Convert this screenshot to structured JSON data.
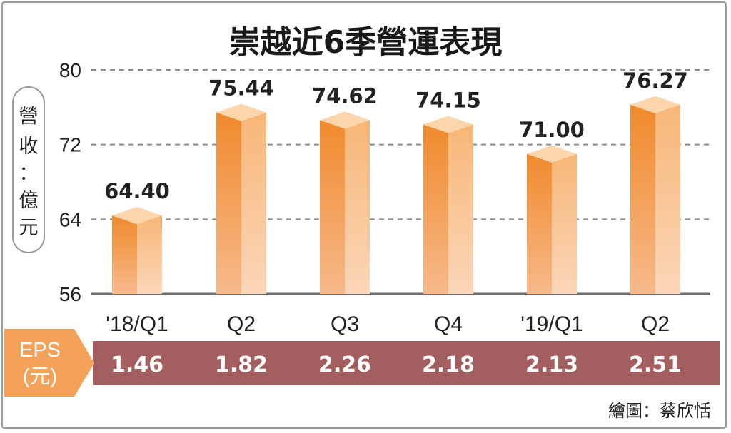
{
  "chart_data": {
    "type": "bar",
    "title": "崇越近6季營運表現",
    "ylabel_chars": [
      "營",
      "收",
      "：",
      "億",
      "元"
    ],
    "categories": [
      "'18/Q1",
      "Q2",
      "Q3",
      "Q4",
      "'19/Q1",
      "Q2"
    ],
    "values": [
      64.4,
      75.44,
      74.62,
      74.15,
      71.0,
      76.27
    ],
    "value_labels": [
      "64.40",
      "75.44",
      "74.62",
      "74.15",
      "71.00",
      "76.27"
    ],
    "ylim": [
      56,
      80
    ],
    "yticks": [
      "56",
      "64",
      "72",
      "80"
    ],
    "grid": true,
    "eps": {
      "label_line1": "EPS",
      "label_line2": "(元)",
      "values": [
        "1.46",
        "1.82",
        "2.26",
        "2.18",
        "2.13",
        "2.51"
      ]
    },
    "credit": "繪圖：蔡欣恬"
  },
  "colors": {
    "bar_front_top": "#f08a2c",
    "bar_front_bottom": "#f7b98a",
    "bar_side_top": "#f7b677",
    "bar_side_bottom": "#fbd6b8",
    "bar_top_face": "#fcd6aa",
    "eps_band": "#a35f5f",
    "eps_arrow": "#f4a259",
    "grid": "#8c8c8c"
  }
}
